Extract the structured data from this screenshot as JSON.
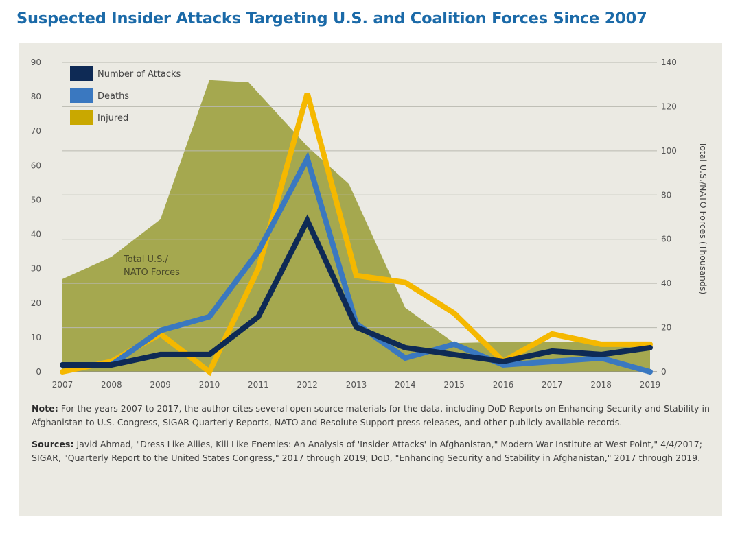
{
  "page_title": "Suspected Insider Attacks Targeting U.S. and Coalition Forces Since 2007",
  "chart_data": {
    "type": "line",
    "title": "Suspected Insider Attacks Targeting U.S. and Coalition Forces Since 2007",
    "x": [
      "2007",
      "2008",
      "2009",
      "2010",
      "2011",
      "2012",
      "2013",
      "2014",
      "2015",
      "2016",
      "2017",
      "2018",
      "2019"
    ],
    "ylim": [
      0,
      90
    ],
    "yticks": [
      0,
      10,
      20,
      30,
      40,
      50,
      60,
      70,
      80,
      90
    ],
    "y2lim": [
      0,
      140
    ],
    "y2ticks": [
      0,
      20,
      40,
      60,
      80,
      100,
      120,
      140
    ],
    "y2label": "Total U.S./NATO Forces (Thousands)",
    "grid": true,
    "legend": "top-left",
    "area_series": {
      "name": "Total U.S./ NATO Forces",
      "label_lines": [
        "Total U.S./",
        "NATO Forces"
      ],
      "axis": "right",
      "x": [
        2007,
        2008,
        2009,
        2010,
        2010.8,
        2012,
        2012.85,
        2014,
        2015,
        2016,
        2017,
        2018,
        2019
      ],
      "values": [
        42,
        52,
        69,
        132,
        131,
        102,
        85,
        29,
        13,
        13.5,
        13.5,
        13.5,
        13.5
      ],
      "color": "#a5a84f"
    },
    "series": [
      {
        "name": "Injured",
        "color": "#f5b800",
        "values": [
          0,
          3,
          11,
          0,
          30,
          81,
          28,
          26,
          17,
          3,
          11,
          8,
          8
        ]
      },
      {
        "name": "Deaths",
        "color": "#3a78c0",
        "values": [
          2,
          2,
          12,
          16,
          35,
          62,
          14,
          4,
          8,
          2,
          3,
          4,
          0
        ]
      },
      {
        "name": "Number of Attacks",
        "color": "#0e2a55",
        "values": [
          2,
          2,
          5,
          5,
          16,
          44,
          13,
          7,
          5,
          3,
          6,
          5,
          7
        ]
      }
    ],
    "legend_entries": [
      {
        "label": "Number of Attacks",
        "color": "#0e2a55"
      },
      {
        "label": "Deaths",
        "color": "#3a78c0"
      },
      {
        "label": "Injured",
        "color": "#c9a800"
      }
    ]
  },
  "note": {
    "label": "Note:",
    "text": " For the years 2007 to 2017, the author cites several open source materials for the data, including DoD Reports on Enhancing Security and Stability in Afghanistan to U.S. Congress, SIGAR Quarterly Reports, NATO and Resolute Support press releases, and other publicly available records."
  },
  "sources": {
    "label": "Sources:",
    "text": " Javid Ahmad, \"Dress Like Allies, Kill Like Enemies: An Analysis of 'Insider Attacks' in Afghanistan,\" Modern War Institute at West Point,\" 4/4/2017; SIGAR, \"Quarterly Report to the United States Congress,\" 2017 through 2019; DoD, \"Enhancing Security and Stability in Afghanistan,\" 2017 through 2019."
  }
}
